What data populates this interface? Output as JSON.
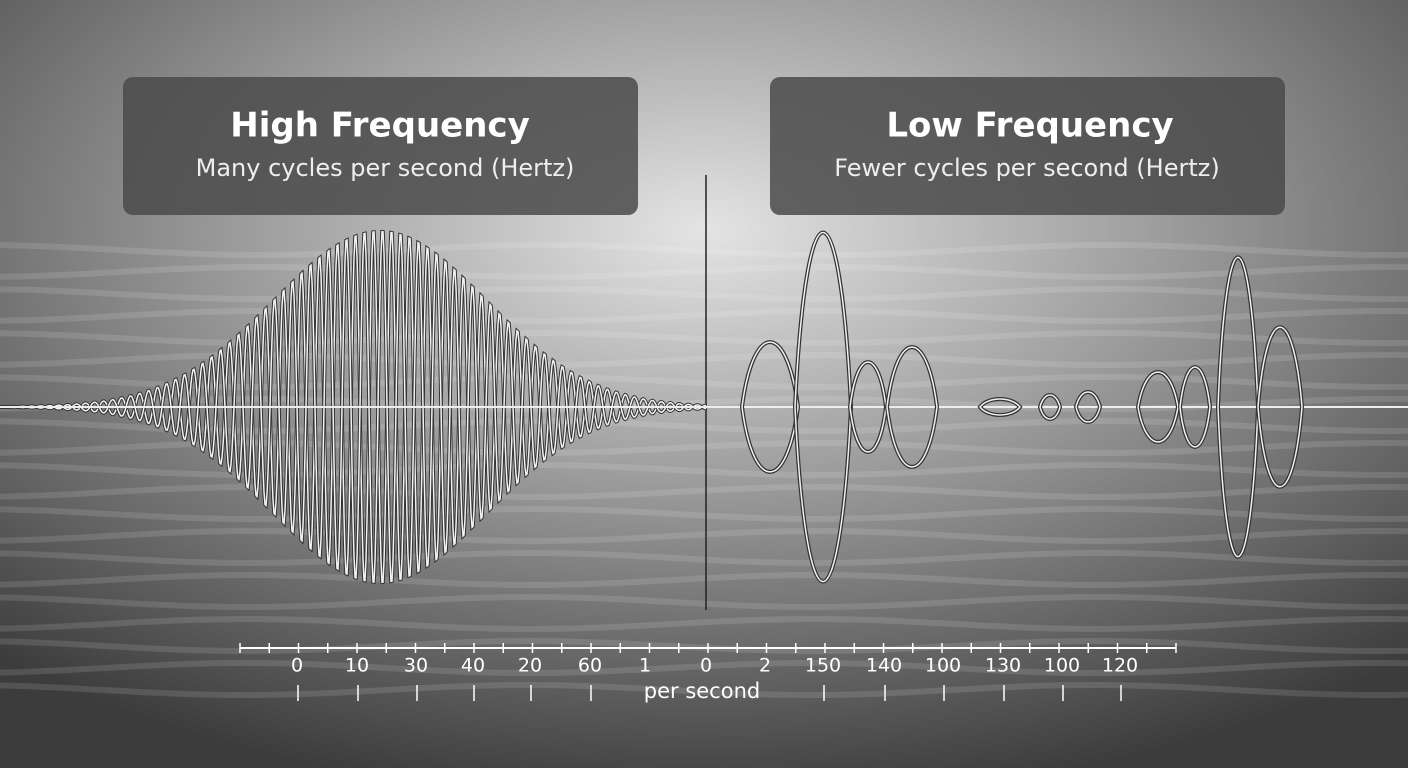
{
  "panels": [
    {
      "title": "High Frequency",
      "subtitle": "Many cycles per second (Hertz)"
    },
    {
      "title": "Low Frequency",
      "subtitle": "Fewer cycles per second (Hertz)"
    }
  ],
  "axis": {
    "tick_labels": [
      "0",
      "10",
      "30",
      "40",
      "20",
      "60",
      "1",
      "0",
      "2",
      "150",
      "140",
      "100",
      "130",
      "100",
      "120"
    ],
    "unit_label": "per second"
  }
}
